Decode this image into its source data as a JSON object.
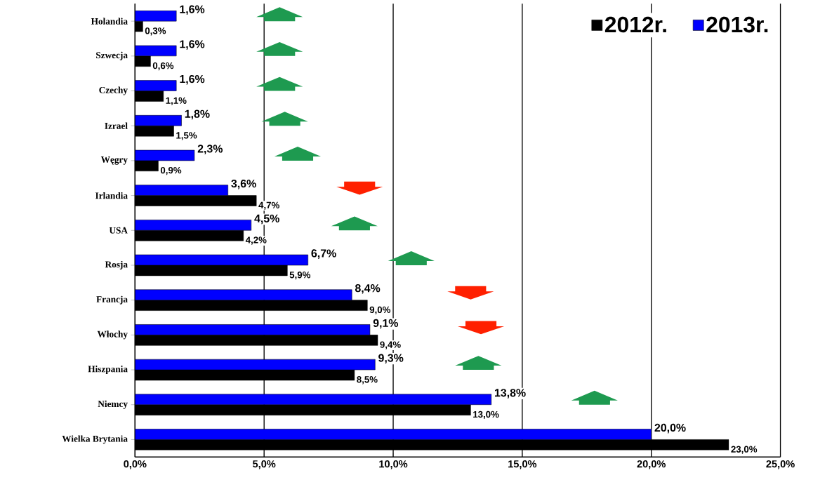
{
  "chart_data": {
    "type": "bar",
    "orientation": "horizontal",
    "categories": [
      "Holandia",
      "Szwecja",
      "Czechy",
      "Izrael",
      "Węgry",
      "Irlandia",
      "USA",
      "Rosja",
      "Francja",
      "Włochy",
      "Hiszpania",
      "Niemcy",
      "Wielka Brytania"
    ],
    "series": [
      {
        "name": "2012r.",
        "color": "#000000",
        "values": [
          0.3,
          0.6,
          1.1,
          1.5,
          0.9,
          4.7,
          4.2,
          5.9,
          9.0,
          9.4,
          8.5,
          13.0,
          23.0
        ],
        "value_labels": [
          "0,3%",
          "0,6%",
          "1,1%",
          "1,5%",
          "0,9%",
          "4,7%",
          "4,2%",
          "5,9%",
          "9,0%",
          "9,4%",
          "8,5%",
          "13,0%",
          "23,0%"
        ]
      },
      {
        "name": "2013r.",
        "color": "#0000ff",
        "values": [
          1.6,
          1.6,
          1.6,
          1.8,
          2.3,
          3.6,
          4.5,
          6.7,
          8.4,
          9.1,
          9.3,
          13.8,
          20.0
        ],
        "value_labels": [
          "1,6%",
          "1,6%",
          "1,6%",
          "1,8%",
          "2,3%",
          "3,6%",
          "4,5%",
          "6,7%",
          "8,4%",
          "9,1%",
          "9,3%",
          "13,8%",
          "20,0%"
        ]
      }
    ],
    "xlim": [
      0,
      25
    ],
    "xticks": [
      {
        "value": 0,
        "label": "0,0%"
      },
      {
        "value": 5,
        "label": "5,0%"
      },
      {
        "value": 10,
        "label": "10,0%"
      },
      {
        "value": 15,
        "label": "15,0%"
      },
      {
        "value": 20,
        "label": "20,0%"
      },
      {
        "value": 25,
        "label": "25,0%"
      }
    ],
    "grid": "x",
    "legend": "top right"
  }
}
